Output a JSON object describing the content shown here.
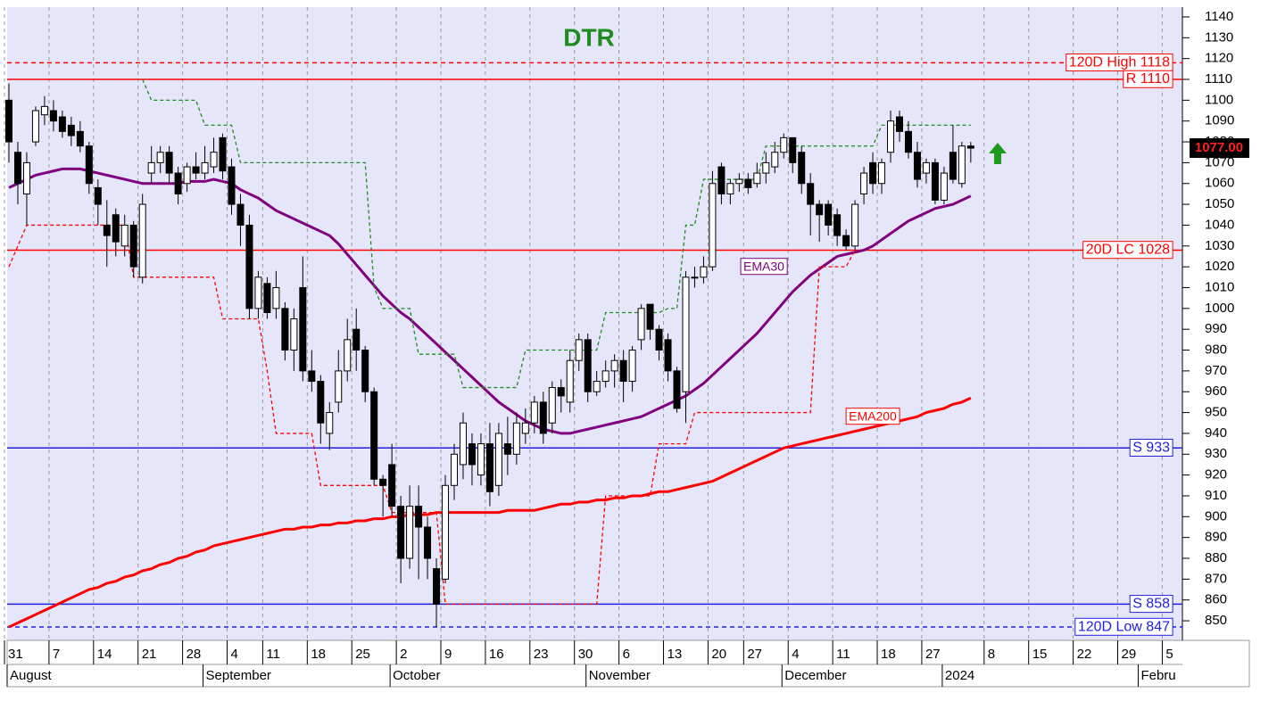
{
  "chart_data": {
    "type": "candlestick",
    "title": "DTR",
    "categories": [
      "Jul 31",
      "Aug 1",
      "Aug 2",
      "Aug 3",
      "Aug 4",
      "Aug 7",
      "Aug 8",
      "Aug 9",
      "Aug 10",
      "Aug 11",
      "Aug 14",
      "Aug 15",
      "Aug 16",
      "Aug 17",
      "Aug 18",
      "Aug 21",
      "Aug 22",
      "Aug 23",
      "Aug 24",
      "Aug 25",
      "Aug 28",
      "Aug 29",
      "Aug 30",
      "Aug 31",
      "Sep 1",
      "Sep 5",
      "Sep 6",
      "Sep 7",
      "Sep 8",
      "Sep 11",
      "Sep 12",
      "Sep 13",
      "Sep 14",
      "Sep 15",
      "Sep 18",
      "Sep 19",
      "Sep 20",
      "Sep 21",
      "Sep 22",
      "Sep 25",
      "Sep 26",
      "Sep 27",
      "Sep 28",
      "Sep 29",
      "Oct 2",
      "Oct 3",
      "Oct 4",
      "Oct 5",
      "Oct 6",
      "Oct 9",
      "Oct 10",
      "Oct 11",
      "Oct 12",
      "Oct 13",
      "Oct 16",
      "Oct 17",
      "Oct 18",
      "Oct 19",
      "Oct 20",
      "Oct 23",
      "Oct 24",
      "Oct 25",
      "Oct 26",
      "Oct 27",
      "Oct 30",
      "Oct 31",
      "Nov 1",
      "Nov 2",
      "Nov 3",
      "Nov 6",
      "Nov 7",
      "Nov 8",
      "Nov 9",
      "Nov 10",
      "Nov 13",
      "Nov 14",
      "Nov 15",
      "Nov 16",
      "Nov 17",
      "Nov 20",
      "Nov 21",
      "Nov 22",
      "Nov 24",
      "Nov 27",
      "Nov 28",
      "Nov 29",
      "Nov 30",
      "Dec 1",
      "Dec 4",
      "Dec 5",
      "Dec 6",
      "Dec 7",
      "Dec 8",
      "Dec 11",
      "Dec 12",
      "Dec 13",
      "Dec 14",
      "Dec 15",
      "Dec 18",
      "Dec 19",
      "Dec 20",
      "Dec 21",
      "Dec 22",
      "Dec 26",
      "Dec 27",
      "Dec 28",
      "Dec 29",
      "Jan 2",
      "Jan 3"
    ],
    "open": [
      1100,
      1075,
      1055,
      1080,
      1093,
      1095,
      1092,
      1088,
      1085,
      1078,
      1058,
      1040,
      1045,
      1030,
      1040,
      1015,
      1065,
      1070,
      1075,
      1065,
      1060,
      1068,
      1065,
      1068,
      1082,
      1068,
      1050,
      1040,
      1000,
      1012,
      1000,
      1000,
      980,
      1010,
      970,
      965,
      940,
      955,
      970,
      990,
      980,
      960,
      918,
      925,
      905,
      880,
      905,
      895,
      875,
      870,
      915,
      925,
      935,
      920,
      935,
      915,
      935,
      930,
      940,
      945,
      955,
      945,
      962,
      955,
      975,
      985,
      960,
      965,
      970,
      975,
      965,
      985,
      1002,
      990,
      985,
      970,
      960,
      1015,
      1015,
      1020,
      1068,
      1055,
      1060,
      1062,
      1060,
      1065,
      1068,
      1075,
      1082,
      1075,
      1060,
      1050,
      1050,
      1045,
      1035,
      1030,
      1055,
      1070,
      1060,
      1075,
      1092,
      1085,
      1075,
      1065,
      1070,
      1052,
      1075,
      1060,
      1078
    ],
    "high": [
      1108,
      1080,
      1075,
      1097,
      1102,
      1100,
      1095,
      1092,
      1090,
      1080,
      1062,
      1052,
      1048,
      1045,
      1042,
      1055,
      1078,
      1078,
      1078,
      1068,
      1070,
      1075,
      1078,
      1082,
      1084,
      1072,
      1055,
      1045,
      1018,
      1015,
      1018,
      1003,
      1000,
      1025,
      980,
      968,
      955,
      980,
      995,
      1000,
      982,
      962,
      920,
      935,
      910,
      915,
      915,
      900,
      880,
      920,
      935,
      950,
      940,
      940,
      945,
      945,
      948,
      950,
      952,
      958,
      960,
      965,
      966,
      980,
      988,
      988,
      970,
      975,
      978,
      980,
      982,
      1002,
      1002,
      992,
      988,
      972,
      1018,
      1020,
      1025,
      1066,
      1070,
      1062,
      1065,
      1065,
      1070,
      1075,
      1080,
      1084,
      1082,
      1078,
      1065,
      1052,
      1052,
      1048,
      1038,
      1052,
      1068,
      1075,
      1072,
      1095,
      1095,
      1090,
      1080,
      1072,
      1072,
      1068,
      1088,
      1080,
      1080
    ],
    "low": [
      1070,
      1050,
      1040,
      1078,
      1088,
      1085,
      1082,
      1078,
      1075,
      1055,
      1040,
      1020,
      1025,
      1025,
      1015,
      1012,
      1060,
      1065,
      1060,
      1050,
      1056,
      1062,
      1062,
      1065,
      1062,
      1045,
      1030,
      995,
      995,
      995,
      995,
      975,
      970,
      965,
      960,
      935,
      932,
      950,
      965,
      970,
      955,
      915,
      900,
      900,
      868,
      875,
      870,
      870,
      847,
      868,
      908,
      918,
      915,
      915,
      905,
      910,
      920,
      925,
      935,
      940,
      935,
      940,
      950,
      950,
      970,
      955,
      958,
      962,
      962,
      955,
      960,
      980,
      985,
      975,
      965,
      950,
      945,
      1010,
      1012,
      1018,
      1050,
      1050,
      1056,
      1055,
      1058,
      1060,
      1065,
      1072,
      1065,
      1055,
      1035,
      1032,
      1035,
      1030,
      1028,
      1028,
      1050,
      1055,
      1055,
      1070,
      1080,
      1072,
      1058,
      1060,
      1050,
      1050,
      1060,
      1058,
      1070
    ],
    "close": [
      1080,
      1060,
      1070,
      1095,
      1097,
      1090,
      1085,
      1083,
      1078,
      1060,
      1050,
      1035,
      1032,
      1040,
      1020,
      1050,
      1070,
      1075,
      1065,
      1055,
      1068,
      1065,
      1070,
      1075,
      1066,
      1050,
      1040,
      1000,
      1015,
      998,
      1010,
      980,
      995,
      970,
      965,
      945,
      950,
      970,
      985,
      980,
      960,
      918,
      915,
      905,
      880,
      905,
      895,
      880,
      858,
      915,
      930,
      945,
      925,
      935,
      912,
      940,
      930,
      945,
      945,
      955,
      940,
      962,
      958,
      975,
      985,
      960,
      965,
      970,
      975,
      965,
      980,
      1000,
      990,
      980,
      970,
      952,
      1015,
      1015,
      1020,
      1060,
      1055,
      1060,
      1062,
      1058,
      1065,
      1070,
      1075,
      1082,
      1070,
      1060,
      1050,
      1045,
      1040,
      1035,
      1030,
      1050,
      1065,
      1060,
      1070,
      1090,
      1085,
      1075,
      1062,
      1070,
      1052,
      1065,
      1062,
      1078,
      1077
    ],
    "series": [
      {
        "name": "EMA30",
        "color": "#800080",
        "style": "solid",
        "values": [
          1058,
          1060,
          1062,
          1064,
          1065,
          1066,
          1067,
          1067,
          1067,
          1066,
          1065,
          1064,
          1063,
          1062,
          1061,
          1060,
          1060,
          1060,
          1060,
          1060,
          1061,
          1061,
          1061,
          1062,
          1061,
          1060,
          1057,
          1055,
          1053,
          1050,
          1047,
          1045,
          1043,
          1041,
          1039,
          1037,
          1035,
          1031,
          1026,
          1021,
          1016,
          1011,
          1006,
          1002,
          998,
          995,
          991,
          987,
          983,
          979,
          975,
          971,
          967,
          963,
          959,
          955,
          952,
          949,
          946,
          944,
          942,
          941,
          940,
          940,
          941,
          942,
          943,
          944,
          945,
          946,
          947,
          948,
          950,
          952,
          954,
          956,
          958,
          961,
          964,
          968,
          972,
          976,
          980,
          984,
          988,
          993,
          998,
          1003,
          1008,
          1012,
          1016,
          1019,
          1022,
          1025,
          1026,
          1027,
          1028,
          1030,
          1033,
          1036,
          1039,
          1042,
          1044,
          1046,
          1048,
          1049,
          1050,
          1052,
          1054
        ]
      },
      {
        "name": "EMA200",
        "color": "#ff0000",
        "style": "solid",
        "values": [
          847,
          849,
          851,
          853,
          855,
          857,
          859,
          861,
          863,
          865,
          866,
          868,
          869,
          871,
          872,
          874,
          875,
          877,
          878,
          880,
          881,
          883,
          884,
          886,
          887,
          888,
          889,
          890,
          891,
          892,
          893,
          894,
          894,
          895,
          895,
          896,
          896,
          897,
          897,
          898,
          898,
          899,
          899,
          900,
          900,
          901,
          901,
          901,
          902,
          902,
          902,
          902,
          902,
          902,
          902,
          902,
          903,
          903,
          903,
          903,
          904,
          905,
          906,
          906,
          907,
          907,
          908,
          908,
          909,
          909,
          910,
          910,
          911,
          912,
          912,
          913,
          914,
          915,
          916,
          917,
          919,
          921,
          923,
          925,
          927,
          929,
          931,
          933,
          934,
          935,
          936,
          937,
          938,
          939,
          940,
          941,
          942,
          943,
          944,
          945,
          946,
          947,
          948,
          950,
          951,
          952,
          954,
          955,
          957
        ]
      },
      {
        "color": "#1e8c1e",
        "style": "dashed",
        "values": [
          null,
          null,
          null,
          null,
          null,
          null,
          null,
          null,
          null,
          null,
          null,
          null,
          null,
          null,
          null,
          1110,
          1100,
          1100,
          1100,
          1100,
          1100,
          1100,
          1088,
          1088,
          1088,
          1088,
          1070,
          1070,
          1070,
          1070,
          1070,
          1070,
          1070,
          1070,
          1070,
          1070,
          1070,
          1070,
          1070,
          1070,
          1070,
          1010,
          1000,
          1000,
          1000,
          1000,
          978,
          978,
          978,
          978,
          978,
          962,
          962,
          962,
          962,
          962,
          962,
          962,
          980,
          980,
          980,
          980,
          980,
          980,
          980,
          980,
          980,
          998,
          998,
          998,
          998,
          998,
          998,
          998,
          1000,
          1000,
          1040,
          1040,
          1062,
          1062,
          1062,
          1062,
          1062,
          1062,
          1062,
          1078,
          1078,
          1078,
          1078,
          1078,
          1078,
          1078,
          1078,
          1078,
          1078,
          1078,
          1078,
          1078,
          1088,
          1088,
          1088,
          1088,
          1088,
          1088,
          1088,
          1088,
          1088,
          1088,
          1088
        ]
      },
      {
        "color": "#ff0000",
        "style": "dashed",
        "values": [
          1020,
          1030,
          1040,
          1040,
          1040,
          1040,
          1040,
          1040,
          1040,
          1040,
          1040,
          1040,
          1040,
          1040,
          1015,
          1015,
          1015,
          1015,
          1015,
          1015,
          1015,
          1015,
          1015,
          1015,
          995,
          995,
          995,
          995,
          995,
          970,
          940,
          940,
          940,
          940,
          940,
          915,
          915,
          915,
          915,
          915,
          915,
          915,
          915,
          902,
          902,
          902,
          902,
          902,
          902,
          858,
          858,
          858,
          858,
          858,
          858,
          858,
          858,
          858,
          858,
          858,
          858,
          858,
          858,
          858,
          858,
          858,
          858,
          910,
          910,
          910,
          910,
          910,
          910,
          935,
          935,
          935,
          935,
          950,
          950,
          950,
          950,
          950,
          950,
          950,
          950,
          950,
          950,
          950,
          950,
          950,
          950,
          1020,
          1020,
          1020,
          1020,
          1028,
          null,
          null,
          null,
          null,
          null,
          null,
          null,
          null,
          null,
          null,
          null,
          null,
          null
        ]
      }
    ],
    "levels": [
      {
        "label": "120D High 1118",
        "value": 1118,
        "color": "#ff0000",
        "style": "dashed"
      },
      {
        "label": "R 1110",
        "value": 1110,
        "color": "#ff0000",
        "style": "solid"
      },
      {
        "label": "20D LC 1028",
        "value": 1028,
        "color": "#ff0000",
        "style": "solid"
      },
      {
        "label": "S 933",
        "value": 933,
        "color": "#2020e0",
        "style": "solid"
      },
      {
        "label": "S 858",
        "value": 858,
        "color": "#2020e0",
        "style": "solid"
      },
      {
        "label": "120D Low 847",
        "value": 847,
        "color": "#2020e0",
        "style": "dashed"
      }
    ],
    "last_price": {
      "value": 1077,
      "label": "1077.00"
    },
    "ylim": [
      840.6,
      1144.7
    ],
    "yticks": [
      850,
      860,
      870,
      880,
      890,
      900,
      910,
      920,
      930,
      940,
      950,
      960,
      970,
      980,
      990,
      1000,
      1010,
      1020,
      1030,
      1040,
      1050,
      1060,
      1070,
      1080,
      1090,
      1100,
      1110,
      1120,
      1130,
      1140
    ],
    "xticks": [
      {
        "value": 0,
        "label": "31"
      },
      {
        "value": 5,
        "label": "7"
      },
      {
        "value": 10,
        "label": "14"
      },
      {
        "value": 15,
        "label": "21"
      },
      {
        "value": 20,
        "label": "28"
      },
      {
        "value": 25,
        "label": "4"
      },
      {
        "value": 29,
        "label": "11"
      },
      {
        "value": 34,
        "label": "18"
      },
      {
        "value": 39,
        "label": "25"
      },
      {
        "value": 44,
        "label": "2"
      },
      {
        "value": 49,
        "label": "9"
      },
      {
        "value": 54,
        "label": "16"
      },
      {
        "value": 59,
        "label": "23"
      },
      {
        "value": 64,
        "label": "30"
      },
      {
        "value": 69,
        "label": "6"
      },
      {
        "value": 74,
        "label": "13"
      },
      {
        "value": 79,
        "label": "20"
      },
      {
        "value": 83,
        "label": "27"
      },
      {
        "value": 88,
        "label": "4"
      },
      {
        "value": 93,
        "label": "11"
      },
      {
        "value": 98,
        "label": "18"
      },
      {
        "value": 103,
        "label": "27"
      },
      {
        "value": 110,
        "label": "8"
      },
      {
        "value": 115,
        "label": "15"
      },
      {
        "value": 120,
        "label": "22"
      },
      {
        "value": 125,
        "label": "29"
      },
      {
        "value": 130,
        "label": "5"
      }
    ],
    "month_ticks": [
      {
        "value": 0,
        "label": "August"
      },
      {
        "value": 22,
        "label": "September"
      },
      {
        "value": 43,
        "label": "October"
      },
      {
        "value": 65,
        "label": "November"
      },
      {
        "value": 87,
        "label": "December"
      },
      {
        "value": 105,
        "label": "2024"
      },
      {
        "value": 127,
        "label": "Febru"
      }
    ],
    "grid": true
  }
}
